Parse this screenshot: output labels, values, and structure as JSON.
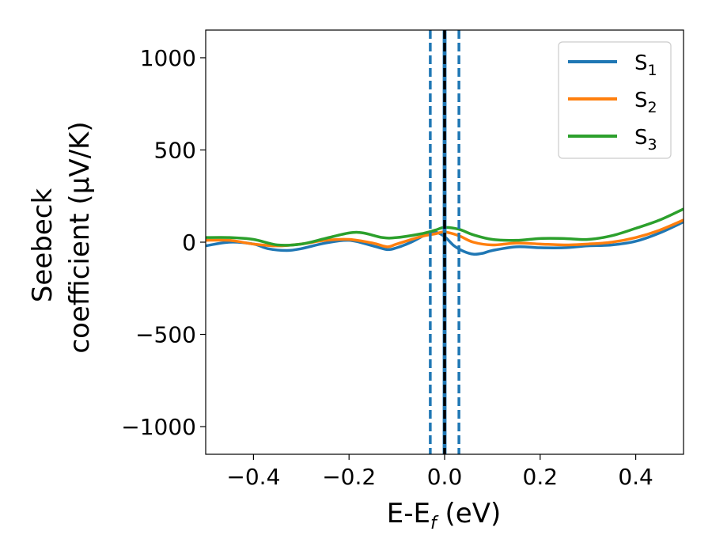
{
  "chart_data": {
    "type": "line",
    "xlabel": {
      "main": "E-E",
      "sub": "f",
      "unit": " (eV)"
    },
    "ylabel": {
      "line1": "Seebeck",
      "line2": "coefficient  (μV/K)"
    },
    "xlim": [
      -0.5,
      0.5
    ],
    "ylim": [
      -1150,
      1150
    ],
    "xticks": [
      -0.4,
      -0.2,
      0.0,
      0.2,
      0.4
    ],
    "xtick_labels": [
      "−0.4",
      "−0.2",
      "0.0",
      "0.2",
      "0.4"
    ],
    "yticks": [
      1000,
      500,
      0,
      -500,
      -1000
    ],
    "ytick_labels": [
      "1000",
      "500",
      "0",
      "−500",
      "−1000"
    ],
    "grid": false,
    "legend_position": "top-right",
    "series": [
      {
        "name": "S",
        "sub": "1",
        "color": "#1f77b4",
        "x": [
          -0.5,
          -0.45,
          -0.4,
          -0.37,
          -0.33,
          -0.3,
          -0.25,
          -0.2,
          -0.15,
          -0.12,
          -0.1,
          -0.07,
          -0.04,
          -0.02,
          0.0,
          0.02,
          0.04,
          0.06,
          0.08,
          0.1,
          0.15,
          0.2,
          0.25,
          0.3,
          0.35,
          0.4,
          0.45,
          0.5
        ],
        "y": [
          -20,
          0,
          -10,
          -35,
          -45,
          -35,
          -5,
          10,
          -20,
          -40,
          -30,
          0,
          40,
          55,
          30,
          -20,
          -50,
          -65,
          -60,
          -45,
          -25,
          -30,
          -30,
          -20,
          -15,
          5,
          50,
          110
        ]
      },
      {
        "name": "S",
        "sub": "2",
        "color": "#ff7f0e",
        "x": [
          -0.5,
          -0.45,
          -0.4,
          -0.35,
          -0.3,
          -0.25,
          -0.2,
          -0.15,
          -0.12,
          -0.1,
          -0.05,
          -0.02,
          0.0,
          0.03,
          0.06,
          0.1,
          0.15,
          0.2,
          0.25,
          0.3,
          0.35,
          0.4,
          0.45,
          0.5
        ],
        "y": [
          10,
          10,
          -10,
          -20,
          -10,
          10,
          15,
          -5,
          -25,
          -10,
          30,
          45,
          55,
          35,
          0,
          -15,
          -5,
          -10,
          -15,
          -10,
          0,
          25,
          65,
          120
        ]
      },
      {
        "name": "S",
        "sub": "3",
        "color": "#2ca02c",
        "x": [
          -0.5,
          -0.45,
          -0.4,
          -0.35,
          -0.3,
          -0.25,
          -0.2,
          -0.17,
          -0.13,
          -0.1,
          -0.05,
          -0.02,
          0.0,
          0.03,
          0.06,
          0.1,
          0.15,
          0.2,
          0.25,
          0.3,
          0.35,
          0.4,
          0.45,
          0.5
        ],
        "y": [
          25,
          25,
          15,
          -15,
          -10,
          20,
          50,
          50,
          25,
          25,
          45,
          65,
          80,
          70,
          40,
          15,
          10,
          20,
          20,
          15,
          35,
          75,
          120,
          180
        ]
      }
    ],
    "vlines": [
      {
        "x": 0.0,
        "color": "#000000",
        "style": "dashed"
      },
      {
        "x": -0.03,
        "color": "#1f77b4",
        "style": "dashed"
      },
      {
        "x": 0.03,
        "color": "#1f77b4",
        "style": "dashed"
      }
    ],
    "bands": [
      {
        "x0": -0.004,
        "x1": 0.004,
        "color": "#1f77b4"
      }
    ]
  }
}
